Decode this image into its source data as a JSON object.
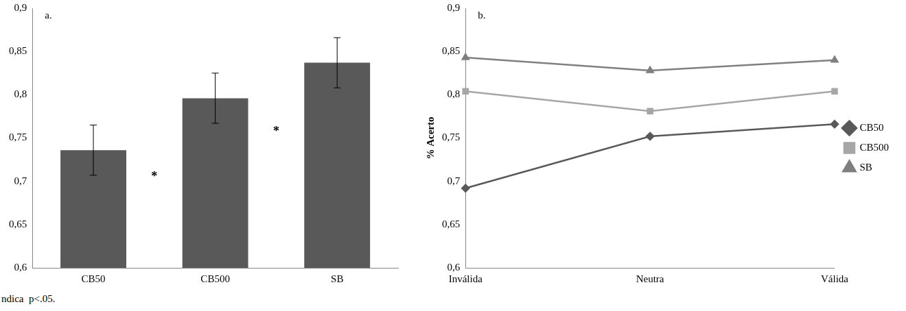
{
  "chart_data": [
    {
      "type": "bar",
      "title": "a.",
      "categories": [
        "CB50",
        "CB500",
        "SB"
      ],
      "values": [
        0.736,
        0.796,
        0.837
      ],
      "errors": [
        0.029,
        0.029,
        0.029
      ],
      "color": "#595959",
      "ylim": [
        0.6,
        0.9
      ],
      "yticks": [
        {
          "value": 0.6,
          "label": "0,6"
        },
        {
          "value": 0.65,
          "label": "0,65"
        },
        {
          "value": 0.7,
          "label": "0,7"
        },
        {
          "value": 0.75,
          "label": "0,75"
        },
        {
          "value": 0.8,
          "label": "0,8"
        },
        {
          "value": 0.85,
          "label": "0,85"
        },
        {
          "value": 0.9,
          "label": "0,9"
        }
      ],
      "grid": false,
      "annotations": [
        {
          "text": "*",
          "between": [
            "CB50",
            "CB500"
          ],
          "y": 0.705
        },
        {
          "text": "*",
          "between": [
            "CB500",
            "SB"
          ],
          "y": 0.757
        }
      ]
    },
    {
      "type": "line",
      "title": "b.",
      "y_label": "% Acerto",
      "categories": [
        "Inválida",
        "Neutra",
        "Válida"
      ],
      "series": [
        {
          "name": "CB50",
          "color": "#595959",
          "marker": "diamond",
          "values": [
            0.692,
            0.752,
            0.766
          ]
        },
        {
          "name": "CB500",
          "color": "#a6a6a6",
          "marker": "square",
          "values": [
            0.804,
            0.781,
            0.804
          ]
        },
        {
          "name": "SB",
          "color": "#7f7f7f",
          "marker": "triangle",
          "values": [
            0.843,
            0.828,
            0.84
          ]
        }
      ],
      "ylim": [
        0.6,
        0.9
      ],
      "yticks": [
        {
          "value": 0.6,
          "label": "0,6"
        },
        {
          "value": 0.65,
          "label": "0,65"
        },
        {
          "value": 0.7,
          "label": "0,7"
        },
        {
          "value": 0.75,
          "label": "0,75"
        },
        {
          "value": 0.8,
          "label": "0,8"
        },
        {
          "value": 0.85,
          "label": "0,85"
        },
        {
          "value": 0.9,
          "label": "0,9"
        }
      ],
      "grid": false,
      "legend": "right"
    }
  ],
  "footnote": "ndica  p<.05."
}
